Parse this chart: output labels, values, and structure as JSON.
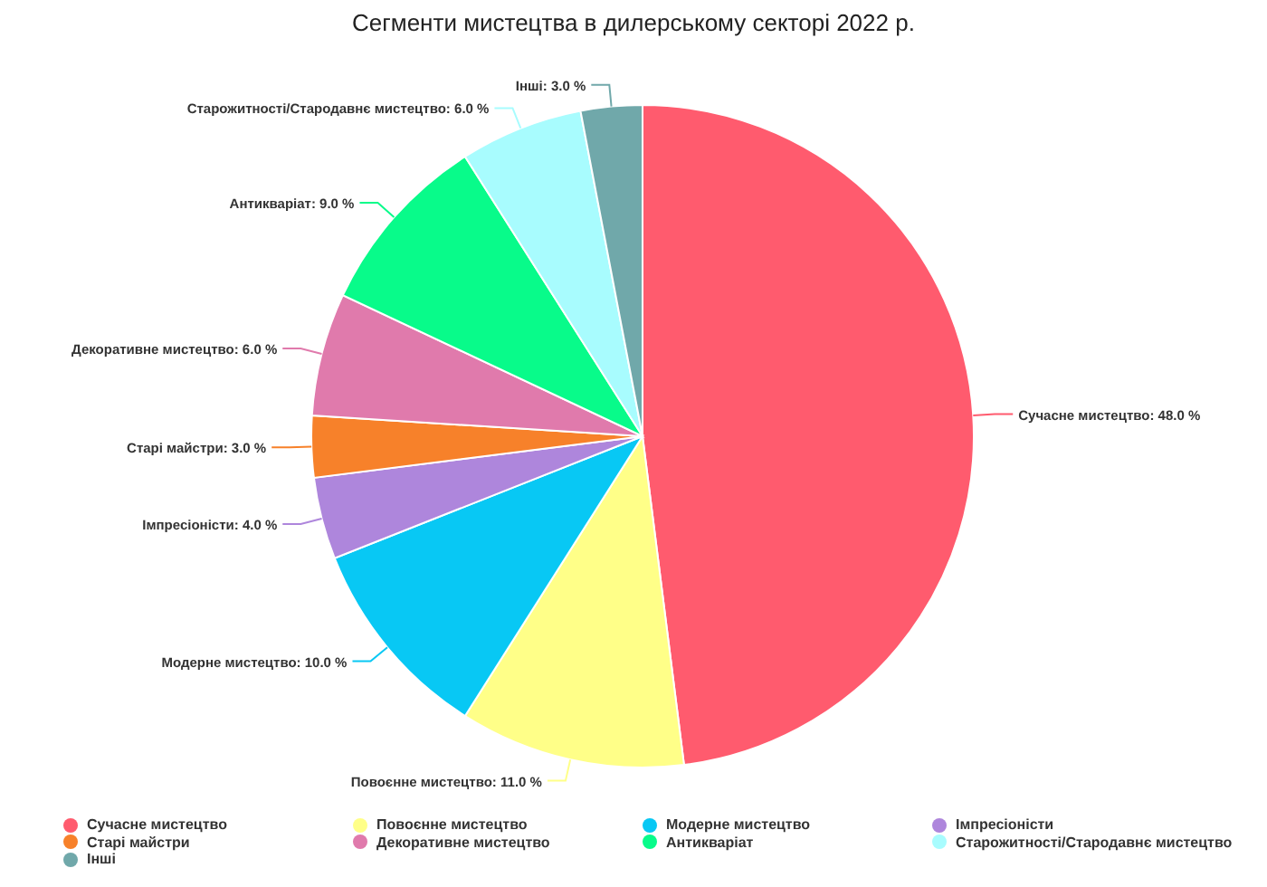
{
  "chart_data": {
    "type": "pie",
    "title": "Сегменти мистецтва в дилерському секторі 2022 р.",
    "categories": [
      "Сучасне мистецтво",
      "Повоєнне мистецтво",
      "Модерне мистецтво",
      "Імпресіоністи",
      "Старі майстри",
      "Декоративне мистецтво",
      "Антикваріат",
      "Старожитності/Стародавнє мистецтво",
      "Інші"
    ],
    "values": [
      48,
      11,
      10,
      4,
      3,
      6,
      9,
      6,
      3
    ],
    "value_labels": [
      "Сучасне мистецтво: 48.0 %",
      "Повоєнне мистецтво: 11.0 %",
      "Модерне мистецтво: 10.0 %",
      "Імпресіоністи: 4.0 %",
      "Старі майстри: 3.0 %",
      "Декоративне мистецтво: 6.0 %",
      "Антикваріат: 9.0 %",
      "Старожитності/Стародавнє мистецтво: 6.0 %",
      "Інші: 3.0 %"
    ],
    "colors": [
      "#ff5b6e",
      "#ffff88",
      "#08c8f4",
      "#ae86dc",
      "#f7812a",
      "#e07aac",
      "#08fb8a",
      "#a8fcfe",
      "#70a8aa"
    ],
    "legend": "bottom"
  }
}
